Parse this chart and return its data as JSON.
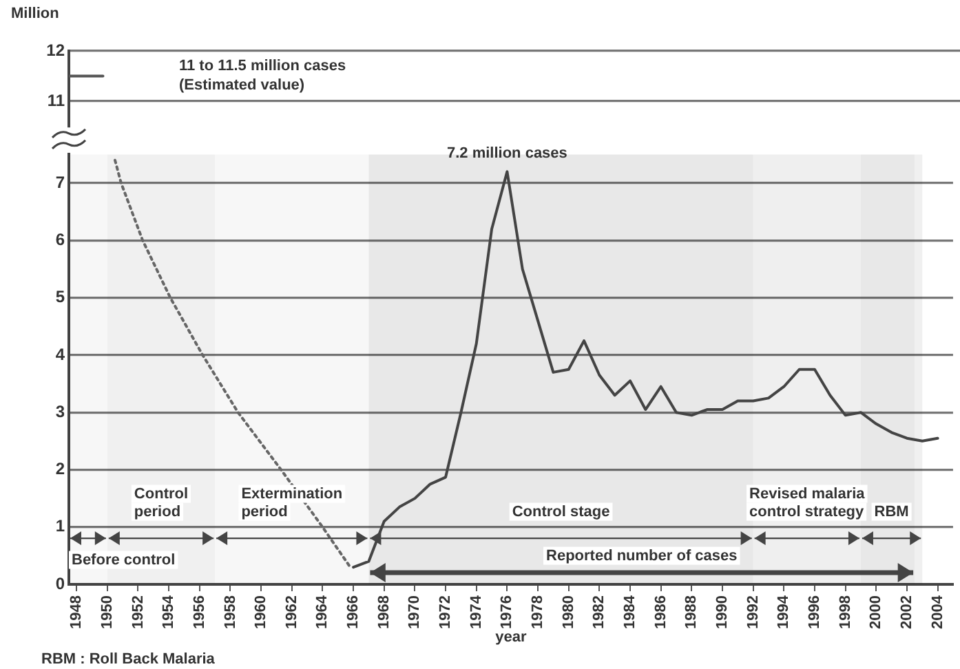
{
  "chart_data": [
    {
      "type": "line",
      "ylabel": "Million",
      "xlim": [
        1947.5,
        2005
      ],
      "xticks": [
        1948,
        1950,
        1952,
        1954,
        1956,
        1958,
        1960,
        1962,
        1964,
        1966,
        1968,
        1970,
        1972,
        1974,
        1976,
        1978,
        1980,
        1982,
        1984,
        1986,
        1988,
        1990,
        1992,
        1994,
        1996,
        1998,
        2000,
        2002,
        2004
      ],
      "ylim": [
        10.5,
        12
      ],
      "yticks": [
        11,
        12
      ],
      "tick_labels": "y",
      "grid": "y",
      "legend": false,
      "marker": "none",
      "line_style": "solid",
      "series": [
        {
          "color": "#555555",
          "x": [
            1947.5,
            1949.7
          ],
          "values": [
            11.5,
            11.5
          ]
        }
      ],
      "annotations": [
        "11 to 11.5 million cases\n(Estimated value)"
      ]
    },
    {
      "type": "line",
      "xlabel": "year",
      "xlim": [
        1947.5,
        2005
      ],
      "xticks": [
        1948,
        1950,
        1952,
        1954,
        1956,
        1958,
        1960,
        1962,
        1964,
        1966,
        1968,
        1970,
        1972,
        1974,
        1976,
        1978,
        1980,
        1982,
        1984,
        1986,
        1988,
        1990,
        1992,
        1994,
        1996,
        1998,
        2000,
        2002,
        2004
      ],
      "ylim": [
        0,
        7.5
      ],
      "yticks": [
        0,
        1,
        2,
        3,
        4,
        5,
        6,
        7
      ],
      "grid": "y",
      "legend": false,
      "marker": "none",
      "line_style": "solid",
      "series": [
        {
          "color": "#666666",
          "line_style": "dotted",
          "x": [
            1950.5,
            1950.9,
            1952.3,
            1954.1,
            1956.2,
            1958.5,
            1961.3,
            1964.0,
            1965.8
          ],
          "values": [
            7.4,
            7.0,
            6.0,
            5.0,
            4.0,
            3.0,
            2.0,
            1.0,
            0.3
          ]
        },
        {
          "color": "#444444",
          "x": [
            1966,
            1967,
            1968,
            1969,
            1970,
            1971,
            1972,
            1973,
            1974,
            1975,
            1976,
            1977,
            1978,
            1979,
            1980,
            1981,
            1982,
            1983,
            1984,
            1985,
            1986,
            1987,
            1988,
            1989,
            1990,
            1991,
            1992,
            1993,
            1994,
            1995,
            1996,
            1997,
            1998,
            1999,
            2000,
            2001,
            2002,
            2003,
            2004
          ],
          "values": [
            0.3,
            0.4,
            1.1,
            1.35,
            1.5,
            1.75,
            1.87,
            3.0,
            4.2,
            6.2,
            7.2,
            5.5,
            4.6,
            3.7,
            3.75,
            4.25,
            3.65,
            3.3,
            3.55,
            3.05,
            3.45,
            3.0,
            2.95,
            3.05,
            3.05,
            3.2,
            3.2,
            3.25,
            3.45,
            3.75,
            3.75,
            3.3,
            2.95,
            3.0,
            2.8,
            2.65,
            2.55,
            2.5,
            2.55
          ]
        }
      ],
      "bands": [
        {
          "axis": "x",
          "from": 1947.5,
          "to": 1950,
          "label": "Before control"
        },
        {
          "axis": "x",
          "from": 1950,
          "to": 1957,
          "label": "Control\nperiod"
        },
        {
          "axis": "x",
          "from": 1957,
          "to": 1967,
          "label": "Extermination\nperiod"
        },
        {
          "axis": "x",
          "from": 1967,
          "to": 1992,
          "label": "Control stage"
        },
        {
          "axis": "x",
          "from": 1992,
          "to": 1999,
          "label": "Revised malaria\ncontrol strategy"
        },
        {
          "axis": "x",
          "from": 1999,
          "to": 2003,
          "label": "RBM"
        },
        {
          "axis": "x",
          "from": 1967,
          "to": 2002.5,
          "label": "Reported number of cases"
        }
      ],
      "annotations": [
        {
          "text": "7.2 million cases",
          "x": 1976,
          "y": 7.2
        },
        "RBM : Roll Back Malaria"
      ]
    }
  ]
}
